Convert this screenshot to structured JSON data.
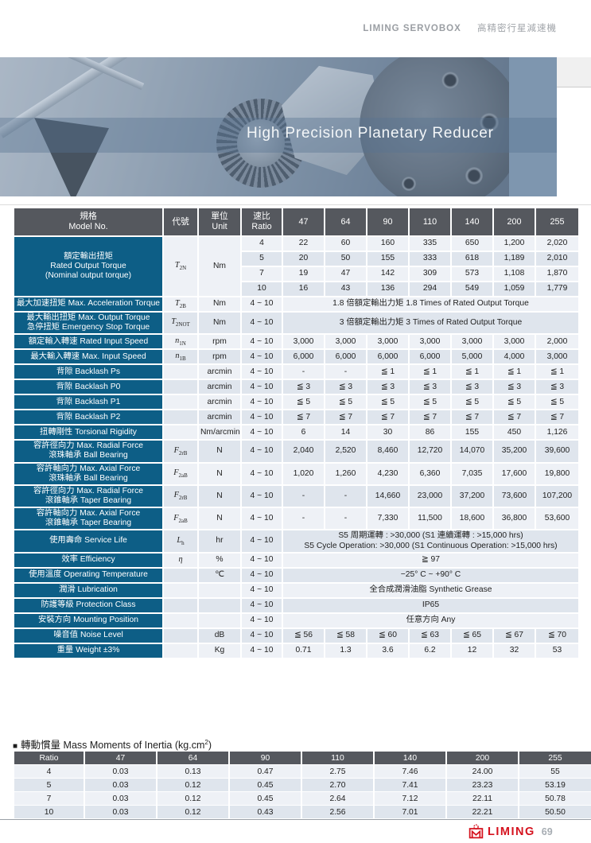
{
  "header": {
    "brand": "LIMING SERVOBOX",
    "product": "高精密行星減速機"
  },
  "banner": {
    "title": "High Precision Planetary Reducer"
  },
  "colors": {
    "accent_teal": "#0d5e86",
    "header_gray": "#55585e",
    "row_light": "#eef1f6",
    "row_dark": "#dfe5ed",
    "brand_red": "#d5121e"
  },
  "spec_table": {
    "header": {
      "model_lines": [
        "規格",
        "Model No."
      ],
      "code": "代號",
      "unit_lines": [
        "單位",
        "Unit"
      ],
      "ratio_lines": [
        "速比",
        "Ratio"
      ],
      "sizes": [
        "47",
        "64",
        "90",
        "110",
        "140",
        "200",
        "255"
      ]
    },
    "rows": [
      {
        "type": "subrows",
        "label": [
          "額定輸出扭矩",
          "Rated Output Torque",
          "(Nominal output torque)"
        ],
        "code": [
          "T",
          "2N"
        ],
        "unit": "Nm",
        "subrows": [
          {
            "ratio": "4",
            "values": [
              "22",
              "60",
              "160",
              "335",
              "650",
              "1,200",
              "2,020"
            ]
          },
          {
            "ratio": "5",
            "values": [
              "20",
              "50",
              "155",
              "333",
              "618",
              "1,189",
              "2,010"
            ]
          },
          {
            "ratio": "7",
            "values": [
              "19",
              "47",
              "142",
              "309",
              "573",
              "1,108",
              "1,870"
            ]
          },
          {
            "ratio": "10",
            "values": [
              "16",
              "43",
              "136",
              "294",
              "549",
              "1,059",
              "1,779"
            ]
          }
        ]
      },
      {
        "type": "span",
        "label": [
          "最大加速扭矩  Max. Acceleration Torque"
        ],
        "code": [
          "T",
          "2B"
        ],
        "unit": "Nm",
        "ratio": "4 ~ 10",
        "span": [
          "1.8 倍額定輸出力矩  1.8 Times of Rated Output Torque"
        ]
      },
      {
        "type": "span",
        "label": [
          "最大輸出扭矩  Max. Output Torque",
          "急停扭矩  Emergency Stop Torque"
        ],
        "code": [
          "T",
          "2NOT"
        ],
        "unit": "Nm",
        "ratio": "4 ~ 10",
        "span": [
          "3 倍額定輸出力矩  3 Times of Rated Output Torque"
        ]
      },
      {
        "type": "values",
        "label": [
          "額定輸入轉速  Rated Input Speed"
        ],
        "code": [
          "n",
          "1N"
        ],
        "unit": "rpm",
        "ratio": "4 ~ 10",
        "values": [
          "3,000",
          "3,000",
          "3,000",
          "3,000",
          "3,000",
          "3,000",
          "2,000"
        ]
      },
      {
        "type": "values",
        "label": [
          "最大輸入轉速  Max. Input Speed"
        ],
        "code": [
          "n",
          "1B"
        ],
        "unit": "rpm",
        "ratio": "4 ~ 10",
        "values": [
          "6,000",
          "6,000",
          "6,000",
          "6,000",
          "5,000",
          "4,000",
          "3,000"
        ]
      },
      {
        "type": "values",
        "label": [
          "背隙  Backlash Ps"
        ],
        "code": null,
        "unit": "arcmin",
        "ratio": "4 ~ 10",
        "values": [
          "-",
          "-",
          "≦ 1",
          "≦ 1",
          "≦ 1",
          "≦ 1",
          "≦ 1"
        ]
      },
      {
        "type": "values",
        "label": [
          "背隙  Backlash P0"
        ],
        "code": null,
        "unit": "arcmin",
        "ratio": "4 ~ 10",
        "values": [
          "≦ 3",
          "≦ 3",
          "≦ 3",
          "≦ 3",
          "≦ 3",
          "≦ 3",
          "≦ 3"
        ]
      },
      {
        "type": "values",
        "label": [
          "背隙  Backlash P1"
        ],
        "code": null,
        "unit": "arcmin",
        "ratio": "4 ~ 10",
        "values": [
          "≦ 5",
          "≦ 5",
          "≦ 5",
          "≦ 5",
          "≦ 5",
          "≦ 5",
          "≦ 5"
        ]
      },
      {
        "type": "values",
        "label": [
          "背隙  Backlash P2"
        ],
        "code": null,
        "unit": "arcmin",
        "ratio": "4 ~ 10",
        "values": [
          "≦ 7",
          "≦ 7",
          "≦ 7",
          "≦ 7",
          "≦ 7",
          "≦ 7",
          "≦ 7"
        ]
      },
      {
        "type": "values",
        "label": [
          "扭轉剛性  Torsional Rigidity"
        ],
        "code": null,
        "unit": "Nm/arcmin",
        "ratio": "4 ~ 10",
        "values": [
          "6",
          "14",
          "30",
          "86",
          "155",
          "450",
          "1,126"
        ]
      },
      {
        "type": "values",
        "label": [
          "容許徑向力  Max. Radial Force",
          "滾珠軸承  Ball Bearing"
        ],
        "code": [
          "F",
          "2rB"
        ],
        "unit": "N",
        "ratio": "4 ~ 10",
        "values": [
          "2,040",
          "2,520",
          "8,460",
          "12,720",
          "14,070",
          "35,200",
          "39,600"
        ]
      },
      {
        "type": "values",
        "label": [
          "容許軸向力  Max. Axial Force",
          "滾珠軸承  Ball Bearing"
        ],
        "code": [
          "F",
          "2aB"
        ],
        "unit": "N",
        "ratio": "4 ~ 10",
        "values": [
          "1,020",
          "1,260",
          "4,230",
          "6,360",
          "7,035",
          "17,600",
          "19,800"
        ]
      },
      {
        "type": "values",
        "label": [
          "容許徑向力  Max. Radial Force",
          "滾錐軸承  Taper Bearing"
        ],
        "code": [
          "F",
          "2rB"
        ],
        "unit": "N",
        "ratio": "4 ~ 10",
        "values": [
          "-",
          "-",
          "14,660",
          "23,000",
          "37,200",
          "73,600",
          "107,200"
        ]
      },
      {
        "type": "values",
        "label": [
          "容許軸向力  Max. Axial Force",
          "滾錐軸承  Taper Bearing"
        ],
        "code": [
          "F",
          "2aB"
        ],
        "unit": "N",
        "ratio": "4 ~ 10",
        "values": [
          "-",
          "-",
          "7,330",
          "11,500",
          "18,600",
          "36,800",
          "53,600"
        ]
      },
      {
        "type": "span",
        "label": [
          "使用壽命  Service Life"
        ],
        "code": [
          "L",
          "h"
        ],
        "unit": "hr",
        "ratio": "4 ~ 10",
        "span": [
          "S5 周期運轉 : >30,000 (S1 連續運轉 : >15,000 hrs)",
          "S5 Cycle Operation: >30,000 (S1 Continuous Operation: >15,000 hrs)"
        ]
      },
      {
        "type": "span",
        "label": [
          "效率  Efficiency"
        ],
        "code": [
          "η",
          ""
        ],
        "unit": "%",
        "ratio": "4 ~ 10",
        "span": [
          "≧ 97"
        ]
      },
      {
        "type": "span",
        "label": [
          "使用溫度  Operating Temperature"
        ],
        "code": null,
        "unit": "℃",
        "ratio": "4 ~ 10",
        "span": [
          "−25° C  ~  +90° C"
        ]
      },
      {
        "type": "span",
        "label": [
          "潤滑  Lubrication"
        ],
        "code": null,
        "unit": "",
        "ratio": "4 ~ 10",
        "span": [
          "全合成潤滑油脂  Synthetic Grease"
        ]
      },
      {
        "type": "span",
        "label": [
          "防護等級  Protection Class"
        ],
        "code": null,
        "unit": "",
        "ratio": "4 ~ 10",
        "span": [
          "IP65"
        ]
      },
      {
        "type": "span",
        "label": [
          "安裝方向  Mounting Position"
        ],
        "code": null,
        "unit": "",
        "ratio": "4 ~ 10",
        "span": [
          "任意方向  Any"
        ]
      },
      {
        "type": "values",
        "label": [
          "噪音值  Noise Level"
        ],
        "code": null,
        "unit": "dB",
        "ratio": "4 ~ 10",
        "values": [
          "≦ 56",
          "≦ 58",
          "≦ 60",
          "≦ 63",
          "≦ 65",
          "≦ 67",
          "≦ 70"
        ]
      },
      {
        "type": "values",
        "label": [
          "重量  Weight  ±3%"
        ],
        "code": null,
        "unit": "Kg",
        "ratio": "4 ~ 10",
        "values": [
          "0.71",
          "1.3",
          "3.6",
          "6.2",
          "12",
          "32",
          "53"
        ]
      }
    ]
  },
  "inertia_table": {
    "bullet": "■",
    "title_zh": "轉動慣量",
    "title_en_prefix": " Mass Moments of Inertia (kg.cm",
    "title_sup": "2",
    "title_en_suffix": ")",
    "header": [
      "Ratio",
      "47",
      "64",
      "90",
      "110",
      "140",
      "200",
      "255"
    ],
    "rows": [
      [
        "4",
        "0.03",
        "0.13",
        "0.47",
        "2.75",
        "7.46",
        "24.00",
        "55"
      ],
      [
        "5",
        "0.03",
        "0.12",
        "0.45",
        "2.70",
        "7.41",
        "23.23",
        "53.19"
      ],
      [
        "7",
        "0.03",
        "0.12",
        "0.45",
        "2.64",
        "7.12",
        "22.11",
        "50.78"
      ],
      [
        "10",
        "0.03",
        "0.12",
        "0.43",
        "2.56",
        "7.01",
        "22.21",
        "50.50"
      ]
    ]
  },
  "footer": {
    "brand": "LIMING",
    "page_number": "69"
  }
}
